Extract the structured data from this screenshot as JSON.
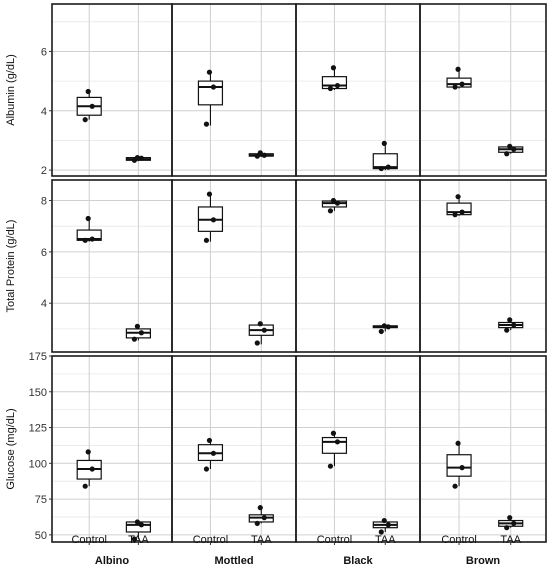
{
  "chart_data": {
    "type": "box",
    "facets": [
      "Albino",
      "Mottled",
      "Black",
      "Brown"
    ],
    "categories": [
      "Control",
      "TAA"
    ],
    "rows": [
      {
        "ylabel": "Albumin (g/dL)",
        "ylim": [
          1.8,
          7.6
        ],
        "yticks": [
          2,
          4,
          6
        ],
        "boxes": [
          [
            {
              "min": 3.7,
              "q1": 3.85,
              "median": 4.15,
              "q3": 4.45,
              "max": 4.65,
              "points": [
                3.7,
                4.15,
                4.65
              ]
            },
            {
              "min": 2.3,
              "q1": 2.33,
              "median": 2.37,
              "q3": 2.42,
              "max": 2.45,
              "points": [
                2.33,
                2.4,
                2.42
              ]
            }
          ],
          [
            {
              "min": 3.5,
              "q1": 4.2,
              "median": 4.8,
              "q3": 5.0,
              "max": 5.3,
              "points": [
                3.55,
                4.8,
                5.3
              ]
            },
            {
              "min": 2.45,
              "q1": 2.47,
              "median": 2.5,
              "q3": 2.55,
              "max": 2.58,
              "points": [
                2.47,
                2.5,
                2.58
              ]
            }
          ],
          [
            {
              "min": 4.7,
              "q1": 4.75,
              "median": 4.85,
              "q3": 5.15,
              "max": 5.45,
              "points": [
                4.75,
                4.85,
                5.45
              ]
            },
            {
              "min": 2.0,
              "q1": 2.05,
              "median": 2.1,
              "q3": 2.55,
              "max": 2.9,
              "points": [
                2.05,
                2.1,
                2.9
              ]
            }
          ],
          [
            {
              "min": 4.75,
              "q1": 4.8,
              "median": 4.9,
              "q3": 5.1,
              "max": 5.4,
              "points": [
                4.8,
                4.9,
                5.4
              ]
            },
            {
              "min": 2.55,
              "q1": 2.6,
              "median": 2.7,
              "q3": 2.78,
              "max": 2.85,
              "points": [
                2.55,
                2.7,
                2.8
              ]
            }
          ]
        ]
      },
      {
        "ylabel": "Total Protein (g/dL)",
        "ylim": [
          2.1,
          8.8
        ],
        "yticks": [
          4,
          6,
          8
        ],
        "boxes": [
          [
            {
              "min": 6.4,
              "q1": 6.45,
              "median": 6.5,
              "q3": 6.85,
              "max": 7.3,
              "points": [
                6.45,
                6.5,
                7.3
              ]
            },
            {
              "min": 2.55,
              "q1": 2.65,
              "median": 2.85,
              "q3": 3.0,
              "max": 3.15,
              "points": [
                2.6,
                2.85,
                3.1
              ]
            }
          ],
          [
            {
              "min": 6.4,
              "q1": 6.8,
              "median": 7.25,
              "q3": 7.75,
              "max": 8.3,
              "points": [
                6.45,
                7.25,
                8.25
              ]
            },
            {
              "min": 2.4,
              "q1": 2.75,
              "median": 2.95,
              "q3": 3.15,
              "max": 3.25,
              "points": [
                2.45,
                2.95,
                3.2
              ]
            }
          ],
          [
            {
              "min": 7.6,
              "q1": 7.75,
              "median": 7.9,
              "q3": 7.98,
              "max": 8.05,
              "points": [
                7.6,
                7.9,
                8.0
              ]
            },
            {
              "min": 2.9,
              "q1": 3.05,
              "median": 3.08,
              "q3": 3.12,
              "max": 3.15,
              "points": [
                2.9,
                3.08,
                3.12
              ]
            }
          ],
          [
            {
              "min": 7.4,
              "q1": 7.45,
              "median": 7.55,
              "q3": 7.9,
              "max": 8.2,
              "points": [
                7.45,
                7.55,
                8.15
              ]
            },
            {
              "min": 2.95,
              "q1": 3.05,
              "median": 3.15,
              "q3": 3.25,
              "max": 3.35,
              "points": [
                2.95,
                3.15,
                3.35
              ]
            }
          ]
        ]
      },
      {
        "ylabel": "Glucose (mg/dL)",
        "ylim": [
          45,
          175
        ],
        "yticks": [
          50,
          75,
          100,
          125,
          150,
          175
        ],
        "boxes": [
          [
            {
              "min": 84,
              "q1": 89,
              "median": 96,
              "q3": 102,
              "max": 108,
              "points": [
                84,
                96,
                108
              ]
            },
            {
              "min": 47,
              "q1": 52,
              "median": 57,
              "q3": 59,
              "max": 60,
              "points": [
                47,
                57,
                59
              ]
            }
          ],
          [
            {
              "min": 96,
              "q1": 102,
              "median": 107,
              "q3": 113,
              "max": 116,
              "points": [
                96,
                107,
                116
              ]
            },
            {
              "min": 58,
              "q1": 59,
              "median": 62,
              "q3": 64,
              "max": 69,
              "points": [
                58,
                62,
                69
              ]
            }
          ],
          [
            {
              "min": 98,
              "q1": 107,
              "median": 115,
              "q3": 118,
              "max": 121,
              "points": [
                98,
                115,
                121
              ]
            },
            {
              "min": 52,
              "q1": 55,
              "median": 57,
              "q3": 59,
              "max": 60,
              "points": [
                52,
                57,
                60
              ]
            }
          ],
          [
            {
              "min": 84,
              "q1": 91,
              "median": 97,
              "q3": 106,
              "max": 114,
              "points": [
                84,
                97,
                114
              ]
            },
            {
              "min": 55,
              "q1": 56,
              "median": 58,
              "q3": 60,
              "max": 63,
              "points": [
                55,
                58,
                62
              ]
            }
          ]
        ]
      }
    ],
    "grid": true
  }
}
